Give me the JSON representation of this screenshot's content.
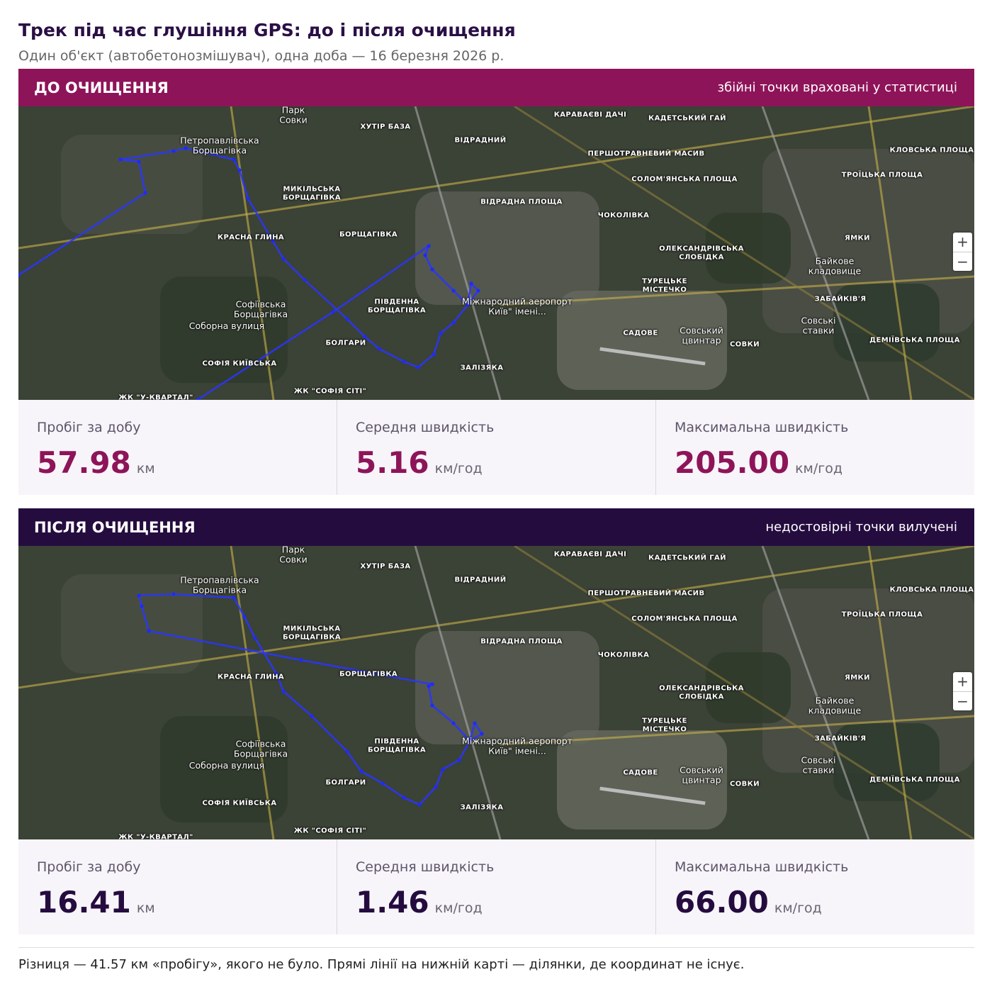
{
  "title": "Трек під час глушіння GPS: до і після очищення",
  "subtitle": "Один об'єкт (автобетонозмішувач), одна доба — 16 березня 2026 р.",
  "map": {
    "labels": [
      "Парк\nСовки",
      "ХУТІР БАЗА",
      "КАРАВАЄВІ ДАЧІ",
      "КАДЕТСЬКИЙ ГАЙ",
      "Петропавлівська\nБорщагівка",
      "ВІДРАДНИЙ",
      "ПЕРШОТРАВНЕВИЙ МАСИВ",
      "КЛОВСЬКА ПЛОЩА",
      "СОЛОМ'ЯНСЬКА ПЛОЩА",
      "ТРОЇЦЬКА ПЛОЩА",
      "МИКІЛЬСЬКА\nБОРЩАГІВКА",
      "ВІДРАДНА ПЛОЩА",
      "ЧОКОЛІВКА",
      "КРАСНА ГЛИНА",
      "БОРЩАГІВКА",
      "ЯМКИ",
      "ОЛЕКСАНДРІВСЬКА\nСЛОБІДКА",
      "Байкове\nкладовище",
      "ТУРЕЦЬКЕ\nМІСТЕЧКО",
      "ЗАБАЙКІВ'Я",
      "Софіївська\nБорщагівка",
      "ПІВДЕННА\nБОРЩАГІВКА",
      "Міжнародний аеропорт\nКиїв\" імені...",
      "САДОВЕ",
      "Совський\nцвинтар",
      "Совські\nставки",
      "СОВКИ",
      "ДЕМІЇВСЬКА ПЛОЩА",
      "Соборна вулиця",
      "БОЛГАРИ",
      "СОФІЯ КИЇВСЬКА",
      "ЗАЛІЗЯКА",
      "ЖК \"СОФІЯ СІТІ\"",
      "ЖК \"У-КВАРТАЛ\""
    ],
    "zoom_in": "+",
    "zoom_out": "−"
  },
  "panels": [
    {
      "heading": "ДО ОЧИЩЕННЯ",
      "note": "збійні точки враховані у статистиці",
      "stats": [
        {
          "label": "Пробіг за добу",
          "value": "57.98",
          "unit": "км"
        },
        {
          "label": "Середня швидкість",
          "value": "5.16",
          "unit": "км/год"
        },
        {
          "label": "Максимальна швидкість",
          "value": "205.00",
          "unit": "км/год"
        }
      ]
    },
    {
      "heading": "ПІСЛЯ ОЧИЩЕННЯ",
      "note": "недостовірні точки вилучені",
      "stats": [
        {
          "label": "Пробіг за добу",
          "value": "16.41",
          "unit": "км"
        },
        {
          "label": "Середня швидкість",
          "value": "1.46",
          "unit": "км/год"
        },
        {
          "label": "Максимальна швидкість",
          "value": "66.00",
          "unit": "км/год"
        }
      ]
    }
  ],
  "footnote": "Різниця — 41.57 км «пробігу», якого не було. Прямі лінії на нижній карті — ділянки, де координат не існує."
}
